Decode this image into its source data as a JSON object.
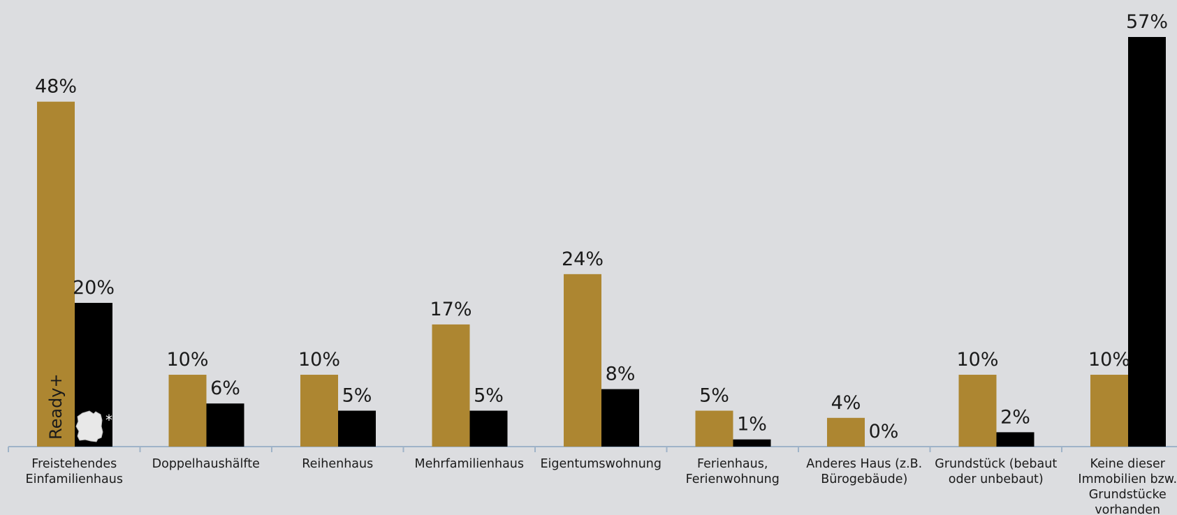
{
  "chart_data": {
    "type": "bar",
    "categories": [
      [
        "Freistehendes",
        "Einfamilienhaus"
      ],
      [
        "Doppelhaushälfte"
      ],
      [
        "Reihenhaus"
      ],
      [
        "Mehrfamilienhaus"
      ],
      [
        "Eigentumswohnung"
      ],
      [
        "Ferienhaus,",
        "Ferienwohnung"
      ],
      [
        "Anderes Haus (z.B.",
        "Bürogebäude)"
      ],
      [
        "Grundstück (bebaut",
        "oder unbebaut)"
      ],
      [
        "Keine dieser",
        "Immobilien bzw.",
        "Grundstücke",
        "vorhanden"
      ]
    ],
    "series": [
      {
        "name": "Ready+",
        "color": "#ad8631",
        "values": [
          48,
          10,
          10,
          17,
          24,
          5,
          4,
          10,
          10
        ]
      },
      {
        "color": "#000000",
        "values": [
          20,
          6,
          5,
          5,
          8,
          1,
          0,
          2,
          57
        ],
        "icon": "germany-map-icon",
        "marker": "*"
      }
    ],
    "value_suffix": "%",
    "ylim": [
      0,
      57
    ],
    "grid": false,
    "legend": "none"
  }
}
